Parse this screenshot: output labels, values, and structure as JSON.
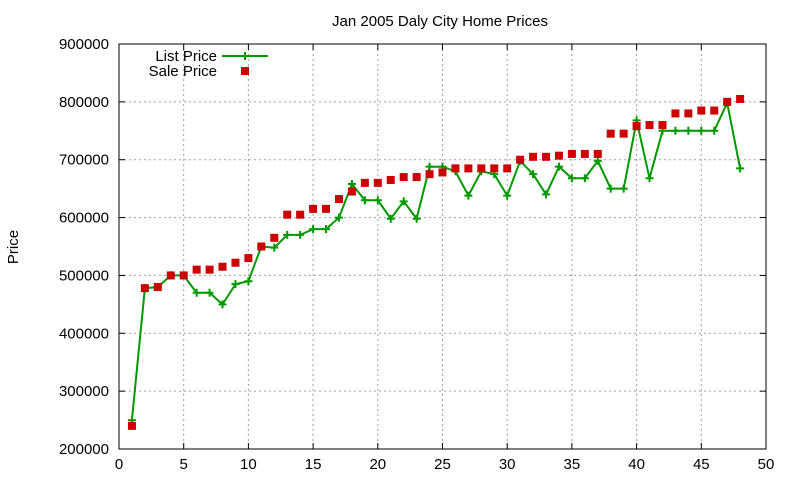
{
  "chart_data": {
    "type": "line",
    "title": "Jan 2005 Daly City Home Prices",
    "xlabel": "",
    "ylabel": "Price",
    "xlim": [
      0,
      50
    ],
    "ylim": [
      200000,
      900000
    ],
    "x_ticks": [
      "0",
      "5",
      "10",
      "15",
      "20",
      "25",
      "30",
      "35",
      "40",
      "45",
      "50"
    ],
    "y_ticks": [
      "200000",
      "300000",
      "400000",
      "500000",
      "600000",
      "700000",
      "800000",
      "900000"
    ],
    "grid": true,
    "legend_position": "top-left",
    "x": [
      1,
      2,
      3,
      4,
      5,
      6,
      7,
      8,
      9,
      10,
      11,
      12,
      13,
      14,
      15,
      16,
      17,
      18,
      19,
      20,
      21,
      22,
      23,
      24,
      25,
      26,
      27,
      28,
      29,
      30,
      31,
      32,
      33,
      34,
      35,
      36,
      37,
      38,
      39,
      40,
      41,
      42,
      43,
      44,
      45,
      46,
      47,
      48
    ],
    "series": [
      {
        "name": "List Price",
        "style": "line-with-plus-markers",
        "color": "#009900",
        "values": [
          250000,
          478000,
          480000,
          500000,
          500000,
          470000,
          470000,
          450000,
          485000,
          490000,
          550000,
          548000,
          570000,
          570000,
          580000,
          580000,
          600000,
          658000,
          630000,
          630000,
          598000,
          628000,
          598000,
          688000,
          688000,
          680000,
          638000,
          680000,
          675000,
          638000,
          698000,
          675000,
          640000,
          688000,
          668000,
          668000,
          698000,
          650000,
          650000,
          768000,
          668000,
          750000,
          750000,
          750000,
          750000,
          750000,
          798000,
          685000
        ]
      },
      {
        "name": "Sale Price",
        "style": "square-markers",
        "color": "#cc0000",
        "values": [
          240000,
          478000,
          480000,
          500000,
          500000,
          510000,
          510000,
          515000,
          522000,
          530000,
          550000,
          565000,
          605000,
          605000,
          615000,
          615000,
          632000,
          645000,
          660000,
          660000,
          665000,
          670000,
          670000,
          675000,
          678000,
          685000,
          685000,
          685000,
          685000,
          685000,
          700000,
          705000,
          705000,
          707000,
          710000,
          710000,
          710000,
          745000,
          745000,
          758000,
          760000,
          760000,
          780000,
          780000,
          785000,
          785000,
          800000,
          805000
        ]
      }
    ]
  }
}
